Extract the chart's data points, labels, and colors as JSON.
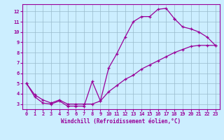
{
  "xlabel": "Windchill (Refroidissement éolien,°C)",
  "bg_color": "#cceeff",
  "line_color": "#990099",
  "grid_color": "#99bbcc",
  "xlim": [
    -0.5,
    23.5
  ],
  "ylim": [
    2.5,
    12.7
  ],
  "xticks": [
    0,
    1,
    2,
    3,
    4,
    5,
    6,
    7,
    8,
    9,
    10,
    11,
    12,
    13,
    14,
    15,
    16,
    17,
    18,
    19,
    20,
    21,
    22,
    23
  ],
  "yticks": [
    3,
    4,
    5,
    6,
    7,
    8,
    9,
    10,
    11,
    12
  ],
  "curve1_x": [
    0,
    1,
    2,
    3,
    4,
    5,
    6,
    7,
    8,
    9,
    10,
    11,
    12,
    13,
    14,
    15,
    16,
    17,
    18
  ],
  "curve1_y": [
    5.0,
    3.7,
    3.1,
    3.0,
    3.3,
    2.8,
    2.8,
    2.8,
    5.2,
    3.3,
    6.5,
    7.9,
    9.5,
    11.0,
    11.5,
    11.5,
    12.2,
    12.3,
    11.3
  ],
  "curve2_x": [
    0,
    1,
    2,
    3,
    4,
    5,
    6,
    7,
    8,
    9,
    10,
    11,
    12,
    13,
    14,
    15,
    16,
    17,
    18,
    19,
    20,
    21,
    22,
    23
  ],
  "curve2_y": [
    5.0,
    3.9,
    3.4,
    3.1,
    3.4,
    3.0,
    3.0,
    3.0,
    3.0,
    3.3,
    4.2,
    4.8,
    5.4,
    5.8,
    6.4,
    6.8,
    7.2,
    7.6,
    8.0,
    8.3,
    8.6,
    8.7,
    8.7,
    8.7
  ],
  "curve3_x": [
    18,
    19,
    20,
    21,
    22,
    23
  ],
  "curve3_y": [
    11.3,
    10.5,
    10.3,
    10.0,
    9.5,
    8.7
  ]
}
